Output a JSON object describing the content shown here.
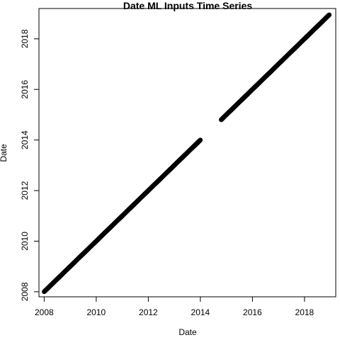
{
  "chart_data": {
    "type": "scatter",
    "title": "Date ML Inputs Time Series",
    "xlabel": "Date",
    "ylabel": "Date",
    "xlim": [
      2007.8,
      2019.2
    ],
    "ylim": [
      2007.8,
      2019.2
    ],
    "x_ticks": [
      2008,
      2010,
      2012,
      2014,
      2016,
      2018
    ],
    "y_ticks": [
      2008,
      2010,
      2012,
      2014,
      2016,
      2018
    ],
    "x_tick_labels": [
      "2008",
      "2010",
      "2012",
      "2014",
      "2016",
      "2018"
    ],
    "y_tick_labels": [
      "2008",
      "2010",
      "2012",
      "2014",
      "2016",
      "2018"
    ],
    "grid": false,
    "point_color": "#000000",
    "series": [
      {
        "segments": [
          {
            "x": [
              2008.0,
              2014.0
            ],
            "y": [
              2008.0,
              2014.0
            ]
          },
          {
            "x": [
              2014.8,
              2018.95
            ],
            "y": [
              2014.8,
              2018.95
            ]
          }
        ]
      }
    ]
  }
}
